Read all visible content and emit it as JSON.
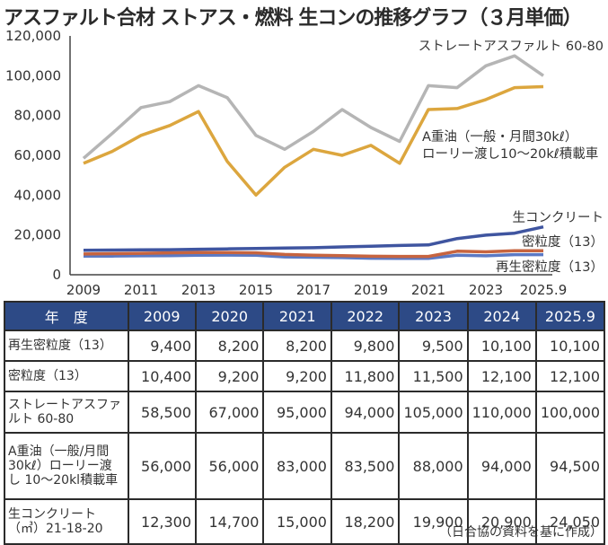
{
  "title": "アスファルト合材 ストアス・燃料 生コンの推移グラフ（３月単価）",
  "chart_data": {
    "type": "line",
    "title": "アスファルト合材 ストアス・燃料 生コンの推移グラフ（３月単価）",
    "xlabel": "",
    "ylabel": "",
    "x": [
      "2009",
      "2010",
      "2011",
      "2012",
      "2013",
      "2014",
      "2015",
      "2016",
      "2017",
      "2018",
      "2019",
      "2020",
      "2021",
      "2022",
      "2023",
      "2024",
      "2025.9"
    ],
    "x_tick_labels": [
      "2009",
      "2011",
      "2013",
      "2015",
      "2017",
      "2019",
      "2021",
      "2023",
      "2025.9"
    ],
    "y_tick_labels": [
      "0",
      "20,000",
      "40,000",
      "60,000",
      "80,000",
      "100,000",
      "120,000"
    ],
    "ylim": [
      0,
      120000
    ],
    "grid": false,
    "series": [
      {
        "name": "ストレートアスファルト 60-80",
        "color": "#b5b5b5",
        "values": [
          58500,
          71000,
          84000,
          87000,
          95000,
          89000,
          70000,
          63000,
          72000,
          83000,
          74000,
          67000,
          95000,
          94000,
          105000,
          110000,
          100000
        ],
        "label_lines": [
          "ストレートアスファルト 60-80"
        ]
      },
      {
        "name": "A重油（一般・月間30kℓ）ローリー渡し10〜20kℓ積載車",
        "color": "#dca63e",
        "values": [
          56000,
          62000,
          70000,
          75000,
          82000,
          57000,
          40000,
          54000,
          63000,
          60000,
          65000,
          56000,
          83000,
          83500,
          88000,
          94000,
          94500
        ],
        "label_lines": [
          "A重油（一般・月間30kℓ）",
          "ローリー渡し10〜20kℓ積載車"
        ]
      },
      {
        "name": "生コンクリート",
        "color": "#3f55a0",
        "values": [
          12300,
          12400,
          12500,
          12600,
          12800,
          13000,
          13200,
          13400,
          13600,
          14000,
          14300,
          14700,
          15000,
          18200,
          19900,
          20900,
          24050
        ],
        "label_lines": [
          "生コンクリート"
        ]
      },
      {
        "name": "密粒度（13）",
        "color": "#c7643f",
        "values": [
          10400,
          10600,
          10800,
          11000,
          11200,
          11200,
          11000,
          10200,
          9800,
          9600,
          9300,
          9200,
          9200,
          11800,
          11500,
          12100,
          12100
        ],
        "label_lines": [
          "密粒度（13）"
        ]
      },
      {
        "name": "再生密粒度（13）",
        "color": "#5b79c4",
        "values": [
          9400,
          9400,
          9500,
          9600,
          9800,
          9900,
          9800,
          9000,
          8800,
          8600,
          8300,
          8200,
          8200,
          9800,
          9500,
          10100,
          10100
        ],
        "label_lines": [
          "再生密粒度（13）"
        ]
      }
    ]
  },
  "table": {
    "header": [
      "年　度",
      "2009",
      "2020",
      "2021",
      "2022",
      "2023",
      "2024",
      "2025.9"
    ],
    "rows": [
      {
        "label": "再生密粒度（13）",
        "values": [
          "9,400",
          "8,200",
          "8,200",
          "9,800",
          "9,500",
          "10,100",
          "10,100"
        ]
      },
      {
        "label": "密粒度（13）",
        "values": [
          "10,400",
          "9,200",
          "9,200",
          "11,800",
          "11,500",
          "12,100",
          "12,100"
        ]
      },
      {
        "label": "ストレートアスファルト 60-80",
        "values": [
          "58,500",
          "67,000",
          "95,000",
          "94,000",
          "105,000",
          "110,000",
          "100,000"
        ]
      },
      {
        "label": "A重油（一般/月間30kℓ）ローリー渡し 10〜20kl積載車",
        "values": [
          "56,000",
          "56,000",
          "83,000",
          "83,500",
          "88,000",
          "94,000",
          "94,500"
        ]
      },
      {
        "label": "生コンクリート（㎥）21-18-20",
        "values": [
          "12,300",
          "14,700",
          "15,000",
          "18,200",
          "19,900",
          "20,900",
          "24,050"
        ]
      }
    ]
  },
  "source": "（日合協の資料を基に作成）"
}
